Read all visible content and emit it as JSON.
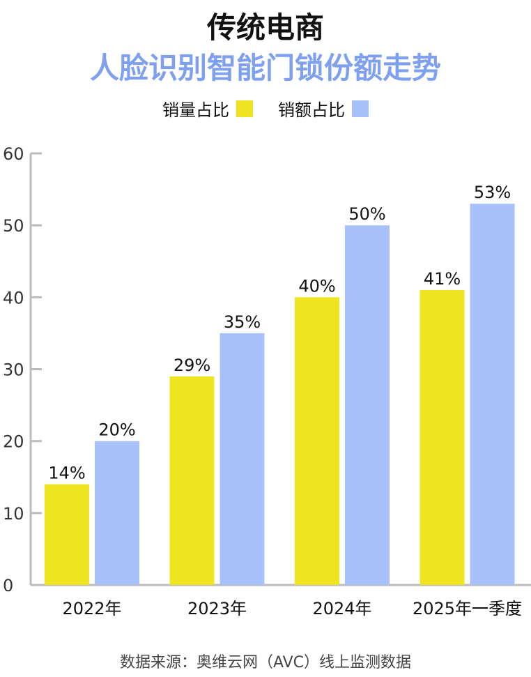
{
  "title_line1": "传统电商",
  "title_line2": "人脸识别智能门锁份额走势",
  "source": "数据来源：奥维云网（AVC）线上监测数据",
  "colors": {
    "volume": "#eee520",
    "revenue": "#a9c1fb",
    "axis": "#bbbbbb",
    "title2": "#7ea0ee"
  },
  "chart_data": {
    "type": "bar",
    "categories": [
      "2022年",
      "2023年",
      "2024年",
      "2025年一季度"
    ],
    "series": [
      {
        "name": "销量占比",
        "values": [
          14,
          29,
          40,
          41
        ],
        "labels": [
          "14%",
          "29%",
          "40%",
          "41%"
        ]
      },
      {
        "name": "销额占比",
        "values": [
          20,
          35,
          50,
          53
        ],
        "labels": [
          "20%",
          "35%",
          "50%",
          "53%"
        ]
      }
    ],
    "yticks": [
      0,
      10,
      20,
      30,
      40,
      50,
      60
    ],
    "ylim": [
      0,
      60
    ],
    "legend": "top-center",
    "grid": false
  }
}
